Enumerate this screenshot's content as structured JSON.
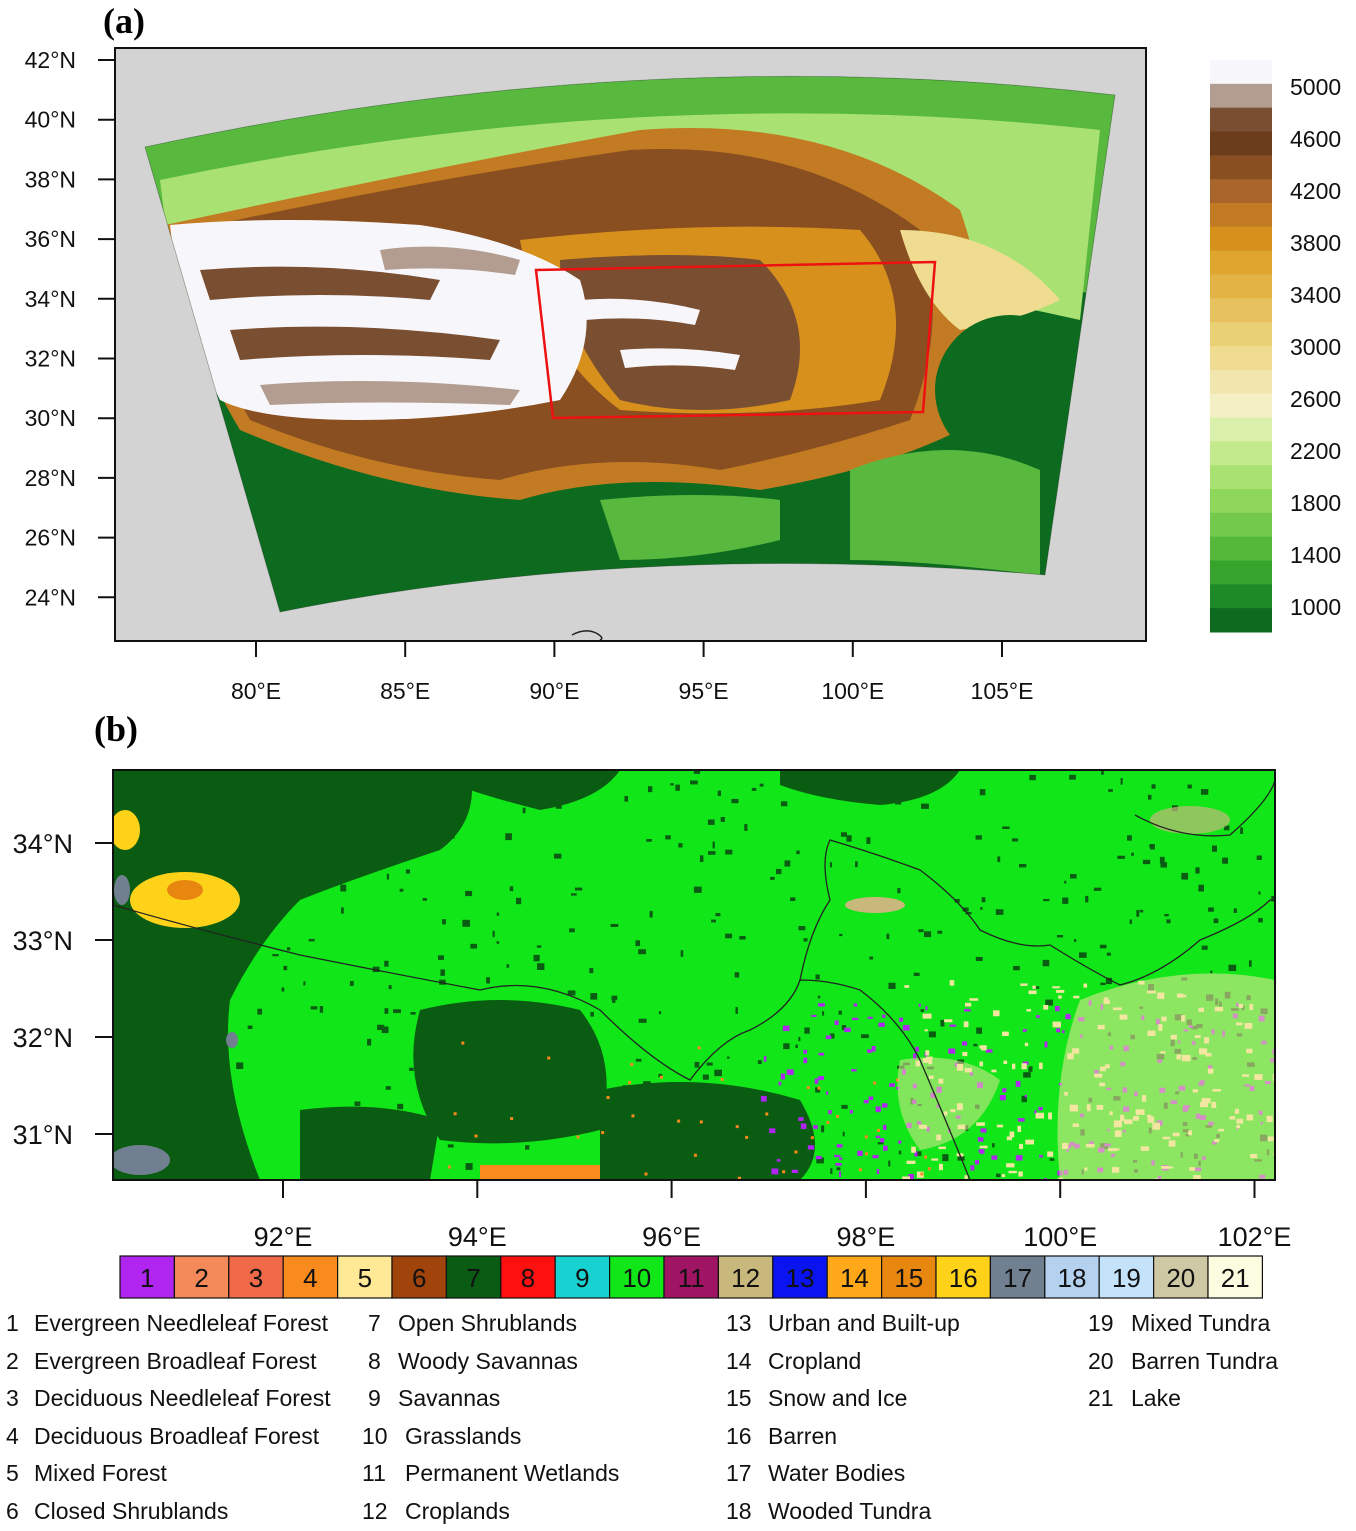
{
  "panel_a": {
    "label": "(a)",
    "lat_ticks": [
      "42°N",
      "40°N",
      "38°N",
      "36°N",
      "34°N",
      "32°N",
      "30°N",
      "28°N",
      "26°N",
      "24°N"
    ],
    "lon_ticks": [
      "80°E",
      "85°E",
      "90°E",
      "95°E",
      "100°E",
      "105°E"
    ],
    "colorbar_labels": [
      "5000",
      "4600",
      "4200",
      "3800",
      "3400",
      "3000",
      "2600",
      "2200",
      "1800",
      "1400",
      "1000"
    ],
    "colorbar_colors": [
      "#f7f7fb",
      "#b29d90",
      "#7a4e31",
      "#6b3d1c",
      "#8a4f20",
      "#a8642a",
      "#c27b22",
      "#d6901b",
      "#dfa52e",
      "#e3b445",
      "#e6c15d",
      "#ead074",
      "#efdc91",
      "#f1e6ad",
      "#f5efc6",
      "#d9efaa",
      "#c3ea8c",
      "#a9e272",
      "#8fd75b",
      "#73c94b",
      "#55b83a",
      "#35a32c",
      "#1d8a28",
      "#0c6b1f"
    ],
    "colors": {
      "background": "#d3d3d3",
      "lowland": "#0c6b1f",
      "mid_green": "#58b93e",
      "light_green": "#a9e272",
      "tan": "#efdc91",
      "orange": "#d6901b",
      "brown": "#7a4e31",
      "snow": "#f7f7fb",
      "box": "#ee1111"
    }
  },
  "panel_b": {
    "label": "(b)",
    "lat_ticks": [
      "34°N",
      "33°N",
      "32°N",
      "31°N"
    ],
    "lon_ticks": [
      "92°E",
      "94°E",
      "96°E",
      "98°E",
      "100°E",
      "102°E"
    ],
    "colors": {
      "grassland": "#00e61a",
      "shrubland": "#0a5c12",
      "purple": "#b026f0",
      "savanna_tan": "#f2e6a0",
      "water": "#7b8a99",
      "barren": "#ffd21a",
      "border": "#222222"
    }
  },
  "landcover_classes": [
    {
      "num": "1",
      "name": "Evergreen Needleleaf Forest",
      "color": "#b026f0"
    },
    {
      "num": "2",
      "name": "Evergreen Broadleaf Forest",
      "color": "#f48a5a"
    },
    {
      "num": "3",
      "name": "Deciduous Needleleaf Forest",
      "color": "#f06a4a"
    },
    {
      "num": "4",
      "name": "Deciduous Broadleaf Forest",
      "color": "#f88a1e"
    },
    {
      "num": "5",
      "name": "Mixed Forest",
      "color": "#ffe896"
    },
    {
      "num": "6",
      "name": "Closed Shrublands",
      "color": "#a0440c"
    },
    {
      "num": "7",
      "name": "Open Shrublands",
      "color": "#0a5c12"
    },
    {
      "num": "8",
      "name": "Woody Savannas",
      "color": "#ff1010"
    },
    {
      "num": "9",
      "name": "Savannas",
      "color": "#18d2d2"
    },
    {
      "num": "10",
      "name": "Grasslands",
      "color": "#10e618"
    },
    {
      "num": "11",
      "name": "Permanent Wetlands",
      "color": "#a01464"
    },
    {
      "num": "12",
      "name": "Croplands",
      "color": "#c8b87c"
    },
    {
      "num": "13",
      "name": "Urban and Built-up",
      "color": "#0a14f0"
    },
    {
      "num": "14",
      "name": "Cropland",
      "color": "#ffa81a"
    },
    {
      "num": "15",
      "name": "Snow and Ice",
      "color": "#e8870f"
    },
    {
      "num": "16",
      "name": "Barren",
      "color": "#ffd21a"
    },
    {
      "num": "17",
      "name": "Water Bodies",
      "color": "#708090"
    },
    {
      "num": "18",
      "name": "Wooded Tundra",
      "color": "#b4d2f0"
    },
    {
      "num": "19",
      "name": "Mixed Tundra",
      "color": "#c4e2fa"
    },
    {
      "num": "20",
      "name": "Barren Tundra",
      "color": "#cec8a4"
    },
    {
      "num": "21",
      "name": "Lake",
      "color": "#fcfce0"
    }
  ]
}
